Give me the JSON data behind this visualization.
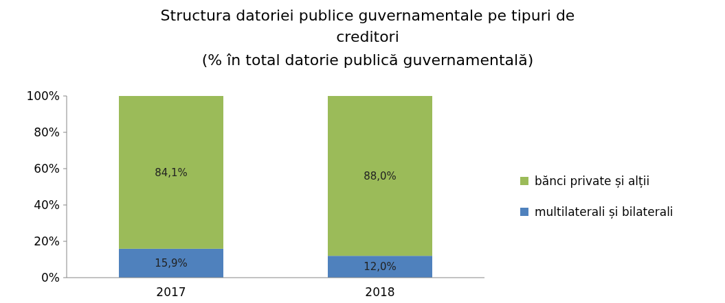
{
  "chart_data": {
    "type": "bar",
    "title": "Structura datoriei publice guvernamentale pe tipuri de creditori",
    "subtitle": "(% în total datorie publică guvernamentală)",
    "categories": [
      "2017",
      "2018"
    ],
    "stacked": true,
    "ylim": [
      0,
      100
    ],
    "yticks": [
      {
        "value": 0,
        "label": "0%"
      },
      {
        "value": 20,
        "label": "20%"
      },
      {
        "value": 40,
        "label": "40%"
      },
      {
        "value": 60,
        "label": "60%"
      },
      {
        "value": 80,
        "label": "80%"
      },
      {
        "value": 100,
        "label": "100%"
      }
    ],
    "legend": "right",
    "series": [
      {
        "name": "multilaterali și bilaterali",
        "color": "#4f81bd",
        "values": [
          15.9,
          12.0
        ],
        "value_labels": [
          "15,9%",
          "12,0%"
        ]
      },
      {
        "name": "bănci private și alții",
        "color": "#9bbb59",
        "values": [
          84.1,
          88.0
        ],
        "value_labels": [
          "84,1%",
          "88,0%"
        ]
      }
    ]
  }
}
